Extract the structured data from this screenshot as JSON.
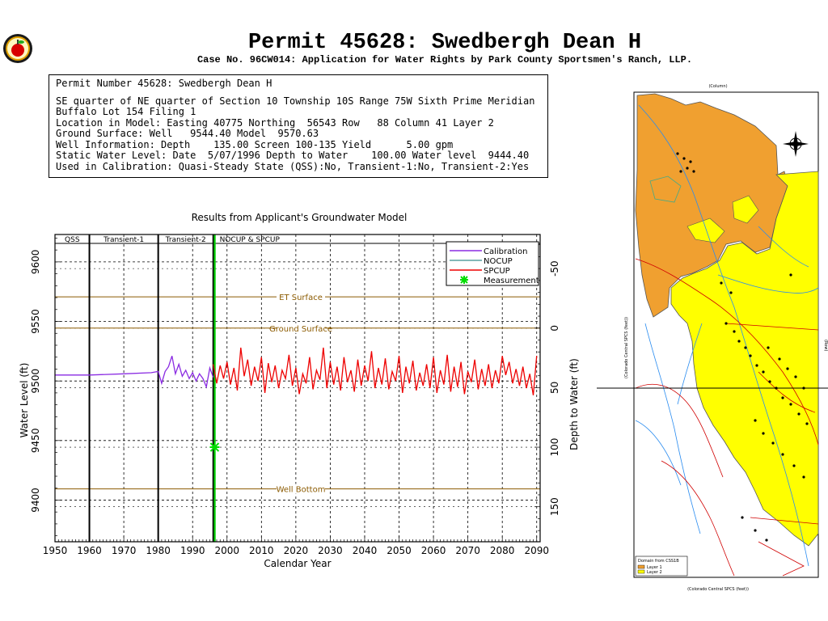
{
  "header": {
    "title": "Permit 45628:  Swedbergh Dean H",
    "subtitle": "Case No. 96CW014: Application for Water Rights by Park County Sportsmen's Ranch, LLP."
  },
  "info": {
    "heading": "Permit Number 45628: Swedbergh Dean H",
    "lines": [
      "SE quarter of NE quarter of Section 10 Township 10S Range 75W Sixth Prime Meridian",
      "Buffalo Lot 154 Filing 1",
      "Location in Model: Easting 40775 Northing  56543 Row   88 Column 41 Layer 2",
      "Ground Surface: Well   9544.40 Model  9570.63",
      "Well Information: Depth    135.00 Screen 100-135 Yield      5.00 gpm",
      "Static Water Level: Date  5/07/1996 Depth to Water    100.00 Water level  9444.40",
      "Used in Calibration: Quasi-Steady State (QSS):No, Transient-1:No, Transient-2:Yes"
    ]
  },
  "chart_data": {
    "type": "line",
    "title": "Results from Applicant's Groundwater Model",
    "xlabel": "Calendar Year",
    "ylabel": "Water Level (ft)",
    "ylabel_right": "Depth to Water (ft)",
    "xlim": [
      1950,
      2091
    ],
    "ylim": [
      9365,
      9623
    ],
    "xticks": [
      1950,
      1960,
      1970,
      1980,
      1990,
      2000,
      2010,
      2020,
      2030,
      2040,
      2050,
      2060,
      2070,
      2080,
      2090
    ],
    "yticks": [
      9400,
      9450,
      9500,
      9550,
      9600
    ],
    "yticks_right": [
      -50,
      0,
      50,
      100,
      150
    ],
    "ground_surface_elev": 9544.4,
    "periods": [
      {
        "label": "QSS",
        "start": 1950,
        "end": 1960
      },
      {
        "label": "Transient-1",
        "start": 1960,
        "end": 1980
      },
      {
        "label": "Transient-2",
        "start": 1980,
        "end": 1996
      },
      {
        "label": "NOCUP & SPCUP",
        "start": 1996,
        "end": 2091
      }
    ],
    "reference_lines": [
      {
        "label": "ET Surface",
        "value": 9570.6
      },
      {
        "label": "Ground Surface",
        "value": 9544.4
      },
      {
        "label": "Well Bottom",
        "value": 9409.4
      }
    ],
    "legend": [
      "Calibration",
      "NOCUP",
      "SPCUP",
      "Measurement"
    ],
    "legend_position": "top-right",
    "series": [
      {
        "name": "Calibration",
        "color": "#8a2be2",
        "x": [
          1950,
          1960,
          1970,
          1978,
          1980,
          1981,
          1982,
          1983,
          1984,
          1985,
          1986,
          1987,
          1988,
          1989,
          1990,
          1991,
          1992,
          1993,
          1994,
          1995,
          1996
        ],
        "y": [
          9505,
          9505,
          9506,
          9507,
          9508,
          9498,
          9508,
          9512,
          9521,
          9506,
          9514,
          9504,
          9509,
          9502,
          9507,
          9500,
          9506,
          9502,
          9495,
          9511,
          9503
        ]
      },
      {
        "name": "SPCUP",
        "color": "#ee0000",
        "x": [
          1996,
          1997,
          1998,
          1999,
          2000,
          2001,
          2002,
          2003,
          2004,
          2005,
          2006,
          2007,
          2008,
          2009,
          2010,
          2011,
          2012,
          2013,
          2014,
          2015,
          2016,
          2017,
          2018,
          2019,
          2020,
          2021,
          2022,
          2023,
          2024,
          2025,
          2026,
          2027,
          2028,
          2029,
          2030,
          2031,
          2032,
          2033,
          2034,
          2035,
          2036,
          2037,
          2038,
          2039,
          2040,
          2041,
          2042,
          2043,
          2044,
          2045,
          2046,
          2047,
          2048,
          2049,
          2050,
          2051,
          2052,
          2053,
          2054,
          2055,
          2056,
          2057,
          2058,
          2059,
          2060,
          2061,
          2062,
          2063,
          2064,
          2065,
          2066,
          2067,
          2068,
          2069,
          2070,
          2071,
          2072,
          2073,
          2074,
          2075,
          2076,
          2077,
          2078,
          2079,
          2080,
          2081,
          2082,
          2083,
          2084,
          2085,
          2086,
          2087,
          2088,
          2089,
          2090
        ],
        "y": [
          9514,
          9498,
          9513,
          9502,
          9516,
          9497,
          9511,
          9492,
          9528,
          9504,
          9518,
          9496,
          9512,
          9500,
          9520,
          9490,
          9515,
          9499,
          9513,
          9494,
          9509,
          9502,
          9522,
          9496,
          9511,
          9489,
          9506,
          9498,
          9520,
          9493,
          9509,
          9501,
          9528,
          9494,
          9516,
          9497,
          9512,
          9492,
          9520,
          9499,
          9509,
          9491,
          9518,
          9496,
          9513,
          9500,
          9525,
          9494,
          9511,
          9497,
          9519,
          9493,
          9508,
          9500,
          9521,
          9490,
          9512,
          9498,
          9517,
          9492,
          9507,
          9496,
          9514,
          9494,
          9520,
          9490,
          9509,
          9497,
          9522,
          9491,
          9512,
          9495,
          9516,
          9489,
          9508,
          9499,
          9518,
          9493,
          9510,
          9496,
          9514,
          9494,
          9509,
          9498,
          9521,
          9505,
          9516,
          9498,
          9510,
          9496,
          9512,
          9494,
          9506,
          9488,
          9521
        ]
      }
    ],
    "measurements": [
      {
        "x": 1996.4,
        "y": 9444.4
      }
    ]
  },
  "map": {
    "top_scale": "(Column)",
    "left_axis_label": "(Colorado Central SPCS (feet))",
    "bottom_axis_label": "(Colorado Central SPCS (feet))",
    "right_scale": "(Row)",
    "legend_title": "Domain from CSS1B",
    "legend_items": [
      {
        "label": "Layer 1",
        "color": "#f0a030"
      },
      {
        "label": "Layer 2",
        "color": "#ffff00"
      }
    ]
  }
}
